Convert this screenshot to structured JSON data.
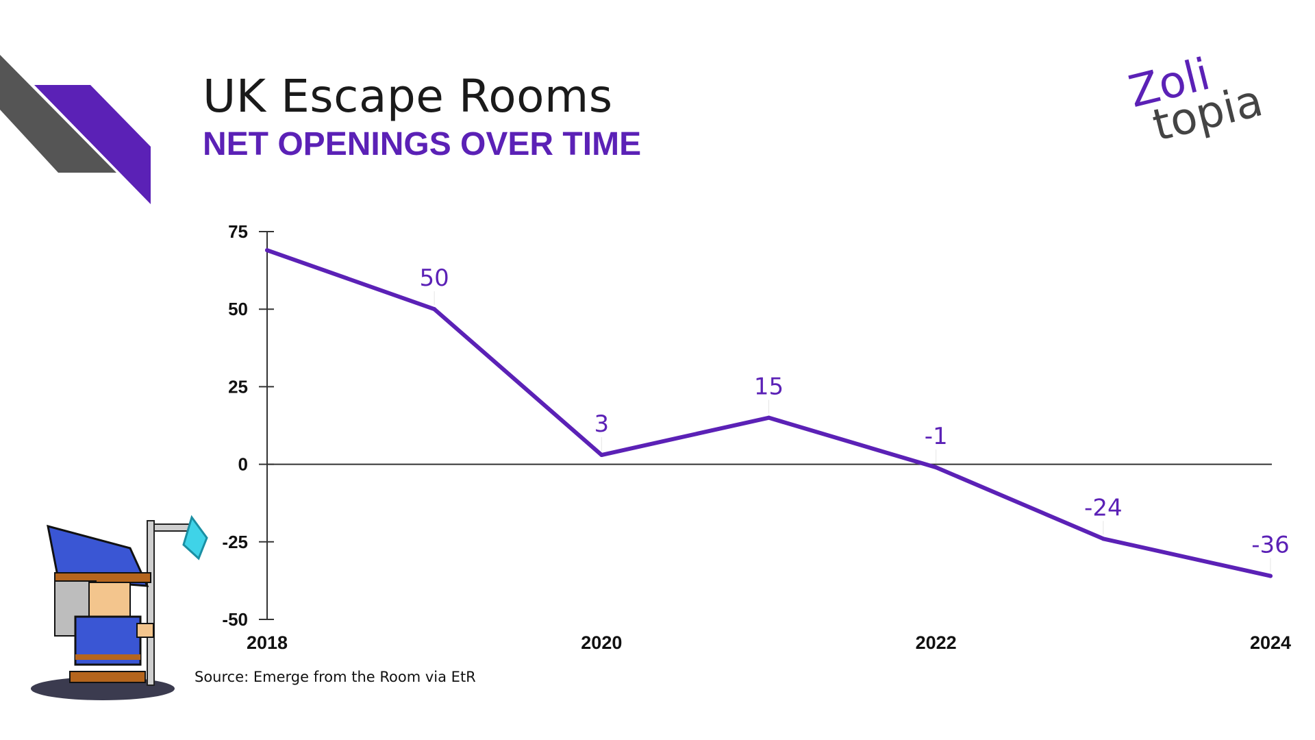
{
  "title": "UK Escape Rooms",
  "subtitle": "NET OPENINGS OVER TIME",
  "logo": {
    "line1": "Zoli",
    "line2": "topia"
  },
  "source": "Source: Emerge from the Room via EtR",
  "colors": {
    "accent": "#5b21b6",
    "grey": "#555555",
    "text": "#111111"
  },
  "chart_data": {
    "type": "line",
    "x": [
      2018,
      2019,
      2020,
      2021,
      2022,
      2023,
      2024
    ],
    "values": [
      69,
      50,
      3,
      15,
      -1,
      -24,
      -36
    ],
    "data_labels": [
      "",
      "50",
      "3",
      "15",
      "-1",
      "-24",
      "-36"
    ],
    "xticks": [
      "2018",
      "2020",
      "2022",
      "2024"
    ],
    "xtick_values": [
      2018,
      2020,
      2022,
      2024
    ],
    "yticks": [
      "75",
      "50",
      "25",
      "0",
      "-25",
      "-50"
    ],
    "ytick_values": [
      75,
      50,
      25,
      0,
      -25,
      -50
    ],
    "xlim": [
      2018,
      2024
    ],
    "ylim": [
      -50,
      75
    ],
    "grid": false,
    "zero_line": true
  }
}
